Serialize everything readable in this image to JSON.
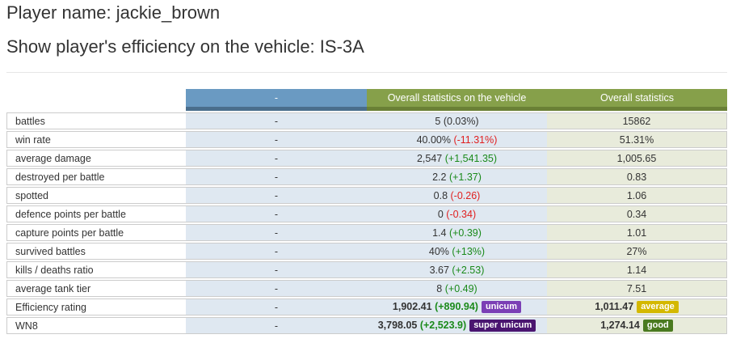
{
  "player_line": "Player name: jackie_brown",
  "vehicle_line": "Show player's efficiency on the vehicle: IS-3A",
  "headers": {
    "c2": "-",
    "c3": "Overall statistics on the vehicle",
    "c4": "Overall statistics"
  },
  "rows": [
    {
      "label": "battles",
      "c2": "-",
      "v": "5",
      "d": "(0.03%)",
      "ds": "",
      "o": "15862"
    },
    {
      "label": "win rate",
      "c2": "-",
      "v": "40.00%",
      "d": "(-11.31%)",
      "ds": "neg",
      "o": "51.31%"
    },
    {
      "label": "average damage",
      "c2": "-",
      "v": "2,547",
      "d": "(+1,541.35)",
      "ds": "pos",
      "o": "1,005.65"
    },
    {
      "label": "destroyed per battle",
      "c2": "-",
      "v": "2.2",
      "d": "(+1.37)",
      "ds": "pos",
      "o": "0.83"
    },
    {
      "label": "spotted",
      "c2": "-",
      "v": "0.8",
      "d": "(-0.26)",
      "ds": "neg",
      "o": "1.06"
    },
    {
      "label": "defence points per battle",
      "c2": "-",
      "v": "0",
      "d": "(-0.34)",
      "ds": "neg",
      "o": "0.34"
    },
    {
      "label": "capture points per battle",
      "c2": "-",
      "v": "1.4",
      "d": "(+0.39)",
      "ds": "pos",
      "o": "1.01"
    },
    {
      "label": "survived battles",
      "c2": "-",
      "v": "40%",
      "d": "(+13%)",
      "ds": "pos",
      "o": "27%"
    },
    {
      "label": "kills / deaths ratio",
      "c2": "-",
      "v": "3.67",
      "d": "(+2.53)",
      "ds": "pos",
      "o": "1.14"
    },
    {
      "label": "average tank tier",
      "c2": "-",
      "v": "8",
      "d": "(+0.49)",
      "ds": "pos",
      "o": "7.51"
    },
    {
      "label": "Efficiency rating",
      "c2": "-",
      "v": "1,902.41",
      "d": "(+890.94)",
      "ds": "pos",
      "bold": true,
      "badge": "unicum",
      "badge_color": "#7b3fb5",
      "o": "1,011.47",
      "obadge": "average",
      "obadge_color": "#d4b800"
    },
    {
      "label": "WN8",
      "c2": "-",
      "v": "3,798.05",
      "d": "(+2,523.9)",
      "ds": "pos",
      "bold": true,
      "badge": "super unicum",
      "badge_color": "#4a1570",
      "o": "1,274.14",
      "obadge": "good",
      "obadge_color": "#4a7a20"
    }
  ]
}
